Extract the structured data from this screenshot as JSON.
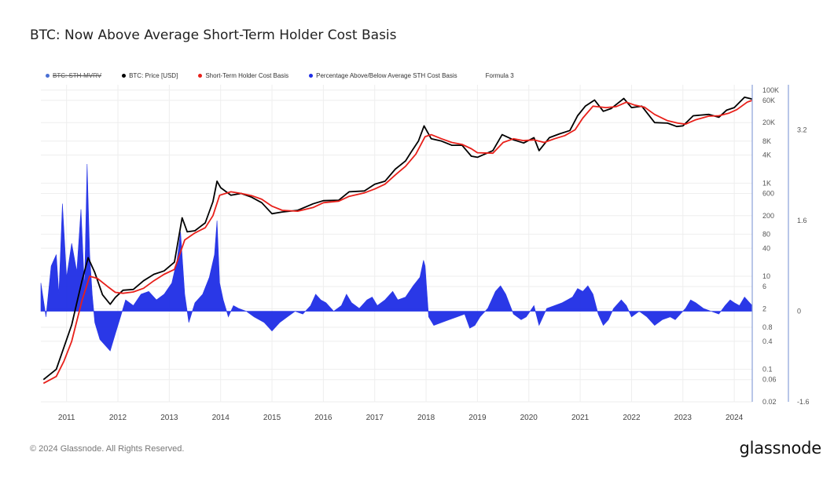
{
  "title": "BTC: Now Above Average Short-Term Holder Cost Basis",
  "footer": "© 2024 Glassnode. All Rights Reserved.",
  "brand": "glassnode",
  "colors": {
    "price": "#000000",
    "cost_basis": "#e8201a",
    "percentage": "#1f2ee6",
    "mvrv": "#4a6fd4",
    "grid": "#eeeeee",
    "axis": "#8aa0d8"
  },
  "legend": [
    {
      "label": "BTC: STH-MVRV",
      "color": "#4a6fd4",
      "struck": true
    },
    {
      "label": "BTC: Price [USD]",
      "color": "#000000",
      "struck": false
    },
    {
      "label": "Short-Term Holder Cost Basis",
      "color": "#e8201a",
      "struck": false
    },
    {
      "label": "Percentage Above/Below Average STH Cost Basis",
      "color": "#1f2ee6",
      "struck": false
    },
    {
      "label": "Formula 3",
      "color": "",
      "struck": false
    }
  ],
  "chart_data": {
    "type": "line",
    "x_axis": {
      "ticks": [
        "2011",
        "2012",
        "2013",
        "2014",
        "2015",
        "2016",
        "2017",
        "2018",
        "2019",
        "2020",
        "2021",
        "2022",
        "2023",
        "2024"
      ],
      "range": [
        2010.5,
        2024.35
      ]
    },
    "y_left": {
      "scale": "log",
      "ticks": [
        "100K",
        "60K",
        "20K",
        "8K",
        "4K",
        "1K",
        "600",
        "200",
        "80",
        "40",
        "10",
        "6",
        "2",
        "0.8",
        "0.4",
        "0.1",
        "0.06",
        "0.02"
      ],
      "tick_values": [
        100000,
        60000,
        20000,
        8000,
        4000,
        1000,
        600,
        200,
        80,
        40,
        10,
        6,
        2,
        0.8,
        0.4,
        0.1,
        0.06,
        0.02
      ],
      "range": [
        0.02,
        130000
      ]
    },
    "y_right": {
      "scale": "linear",
      "ticks": [
        "3.2",
        "1.6",
        "0",
        "-1.6"
      ],
      "tick_values": [
        3.2,
        1.6,
        0,
        -1.6
      ],
      "range": [
        -1.6,
        4.0
      ]
    },
    "series": [
      {
        "name": "BTC: Price [USD]",
        "axis": "left",
        "points": [
          [
            2010.55,
            0.06
          ],
          [
            2010.8,
            0.1
          ],
          [
            2010.95,
            0.3
          ],
          [
            2011.1,
            0.9
          ],
          [
            2011.3,
            8
          ],
          [
            2011.42,
            25
          ],
          [
            2011.55,
            12
          ],
          [
            2011.7,
            4
          ],
          [
            2011.85,
            2.5
          ],
          [
            2011.95,
            3.5
          ],
          [
            2012.1,
            5
          ],
          [
            2012.3,
            5.2
          ],
          [
            2012.5,
            8
          ],
          [
            2012.7,
            11
          ],
          [
            2012.9,
            13
          ],
          [
            2013.1,
            20
          ],
          [
            2013.25,
            180
          ],
          [
            2013.35,
            90
          ],
          [
            2013.5,
            95
          ],
          [
            2013.7,
            140
          ],
          [
            2013.85,
            400
          ],
          [
            2013.93,
            1100
          ],
          [
            2014.0,
            800
          ],
          [
            2014.2,
            550
          ],
          [
            2014.4,
            600
          ],
          [
            2014.6,
            500
          ],
          [
            2014.8,
            380
          ],
          [
            2015.0,
            220
          ],
          [
            2015.2,
            240
          ],
          [
            2015.5,
            260
          ],
          [
            2015.8,
            360
          ],
          [
            2016.0,
            420
          ],
          [
            2016.3,
            430
          ],
          [
            2016.5,
            650
          ],
          [
            2016.8,
            680
          ],
          [
            2017.0,
            950
          ],
          [
            2017.2,
            1100
          ],
          [
            2017.4,
            2000
          ],
          [
            2017.6,
            3000
          ],
          [
            2017.7,
            4500
          ],
          [
            2017.85,
            8000
          ],
          [
            2017.96,
            17000
          ],
          [
            2018.1,
            9000
          ],
          [
            2018.3,
            8000
          ],
          [
            2018.5,
            6500
          ],
          [
            2018.7,
            6500
          ],
          [
            2018.88,
            3800
          ],
          [
            2019.0,
            3600
          ],
          [
            2019.3,
            5000
          ],
          [
            2019.48,
            11000
          ],
          [
            2019.7,
            8500
          ],
          [
            2019.9,
            7300
          ],
          [
            2020.1,
            9500
          ],
          [
            2020.2,
            5000
          ],
          [
            2020.4,
            9500
          ],
          [
            2020.6,
            11500
          ],
          [
            2020.8,
            13500
          ],
          [
            2020.95,
            28000
          ],
          [
            2021.1,
            45000
          ],
          [
            2021.28,
            61000
          ],
          [
            2021.45,
            35000
          ],
          [
            2021.6,
            40000
          ],
          [
            2021.85,
            66000
          ],
          [
            2022.0,
            42000
          ],
          [
            2022.2,
            45000
          ],
          [
            2022.45,
            20000
          ],
          [
            2022.7,
            19500
          ],
          [
            2022.88,
            16500
          ],
          [
            2023.0,
            17000
          ],
          [
            2023.2,
            28000
          ],
          [
            2023.5,
            30000
          ],
          [
            2023.7,
            26000
          ],
          [
            2023.85,
            37000
          ],
          [
            2024.0,
            42000
          ],
          [
            2024.2,
            70000
          ],
          [
            2024.35,
            64000
          ]
        ]
      },
      {
        "name": "Short-Term Holder Cost Basis",
        "axis": "left",
        "points": [
          [
            2010.55,
            0.05
          ],
          [
            2010.8,
            0.07
          ],
          [
            2010.95,
            0.15
          ],
          [
            2011.1,
            0.4
          ],
          [
            2011.3,
            3
          ],
          [
            2011.45,
            10
          ],
          [
            2011.6,
            9
          ],
          [
            2011.8,
            6
          ],
          [
            2011.95,
            4.5
          ],
          [
            2012.1,
            4.3
          ],
          [
            2012.3,
            4.6
          ],
          [
            2012.5,
            5.5
          ],
          [
            2012.7,
            8
          ],
          [
            2012.9,
            11
          ],
          [
            2013.1,
            14
          ],
          [
            2013.3,
            60
          ],
          [
            2013.5,
            85
          ],
          [
            2013.7,
            110
          ],
          [
            2013.85,
            200
          ],
          [
            2013.98,
            550
          ],
          [
            2014.2,
            650
          ],
          [
            2014.4,
            600
          ],
          [
            2014.6,
            540
          ],
          [
            2014.8,
            450
          ],
          [
            2015.0,
            320
          ],
          [
            2015.2,
            260
          ],
          [
            2015.5,
            250
          ],
          [
            2015.8,
            300
          ],
          [
            2016.0,
            380
          ],
          [
            2016.3,
            410
          ],
          [
            2016.5,
            520
          ],
          [
            2016.8,
            620
          ],
          [
            2017.0,
            750
          ],
          [
            2017.2,
            950
          ],
          [
            2017.4,
            1500
          ],
          [
            2017.6,
            2300
          ],
          [
            2017.8,
            4200
          ],
          [
            2017.98,
            10000
          ],
          [
            2018.1,
            11000
          ],
          [
            2018.3,
            9000
          ],
          [
            2018.5,
            7500
          ],
          [
            2018.7,
            6800
          ],
          [
            2018.88,
            5500
          ],
          [
            2019.0,
            4500
          ],
          [
            2019.3,
            4400
          ],
          [
            2019.5,
            7500
          ],
          [
            2019.7,
            9000
          ],
          [
            2019.9,
            8200
          ],
          [
            2020.1,
            8500
          ],
          [
            2020.3,
            7500
          ],
          [
            2020.5,
            9000
          ],
          [
            2020.7,
            10500
          ],
          [
            2020.9,
            14000
          ],
          [
            2021.05,
            25000
          ],
          [
            2021.25,
            45000
          ],
          [
            2021.5,
            42000
          ],
          [
            2021.7,
            44000
          ],
          [
            2021.9,
            55000
          ],
          [
            2022.05,
            48000
          ],
          [
            2022.25,
            43000
          ],
          [
            2022.45,
            30000
          ],
          [
            2022.7,
            22000
          ],
          [
            2022.9,
            19500
          ],
          [
            2023.05,
            18500
          ],
          [
            2023.25,
            23000
          ],
          [
            2023.5,
            27500
          ],
          [
            2023.7,
            28000
          ],
          [
            2023.9,
            32000
          ],
          [
            2024.05,
            38000
          ],
          [
            2024.25,
            55000
          ],
          [
            2024.35,
            60000
          ]
        ]
      },
      {
        "name": "Percentage Above/Below Average STH Cost Basis",
        "axis": "right",
        "type": "area",
        "points": [
          [
            2010.5,
            0.5
          ],
          [
            2010.6,
            -0.1
          ],
          [
            2010.7,
            0.8
          ],
          [
            2010.8,
            1.0
          ],
          [
            2010.85,
            0.3
          ],
          [
            2010.92,
            1.9
          ],
          [
            2011.0,
            0.6
          ],
          [
            2011.1,
            1.2
          ],
          [
            2011.2,
            0.7
          ],
          [
            2011.28,
            1.8
          ],
          [
            2011.35,
            0.4
          ],
          [
            2011.4,
            2.6
          ],
          [
            2011.45,
            1.0
          ],
          [
            2011.5,
            0.3
          ],
          [
            2011.55,
            -0.2
          ],
          [
            2011.65,
            -0.5
          ],
          [
            2011.75,
            -0.6
          ],
          [
            2011.85,
            -0.7
          ],
          [
            2011.95,
            -0.4
          ],
          [
            2012.05,
            -0.1
          ],
          [
            2012.15,
            0.2
          ],
          [
            2012.3,
            0.1
          ],
          [
            2012.45,
            0.3
          ],
          [
            2012.6,
            0.35
          ],
          [
            2012.75,
            0.2
          ],
          [
            2012.9,
            0.3
          ],
          [
            2013.05,
            0.5
          ],
          [
            2013.15,
            0.9
          ],
          [
            2013.22,
            1.4
          ],
          [
            2013.3,
            0.3
          ],
          [
            2013.38,
            -0.2
          ],
          [
            2013.5,
            0.15
          ],
          [
            2013.65,
            0.3
          ],
          [
            2013.78,
            0.6
          ],
          [
            2013.88,
            1.0
          ],
          [
            2013.93,
            1.6
          ],
          [
            2013.98,
            0.5
          ],
          [
            2014.05,
            0.2
          ],
          [
            2014.15,
            -0.1
          ],
          [
            2014.25,
            0.1
          ],
          [
            2014.35,
            0.05
          ],
          [
            2014.5,
            0.0
          ],
          [
            2014.65,
            -0.1
          ],
          [
            2014.85,
            -0.2
          ],
          [
            2015.0,
            -0.35
          ],
          [
            2015.15,
            -0.2
          ],
          [
            2015.3,
            -0.1
          ],
          [
            2015.45,
            0.0
          ],
          [
            2015.6,
            -0.05
          ],
          [
            2015.75,
            0.1
          ],
          [
            2015.85,
            0.3
          ],
          [
            2015.95,
            0.2
          ],
          [
            2016.05,
            0.15
          ],
          [
            2016.2,
            0.0
          ],
          [
            2016.35,
            0.1
          ],
          [
            2016.45,
            0.3
          ],
          [
            2016.55,
            0.15
          ],
          [
            2016.7,
            0.05
          ],
          [
            2016.85,
            0.2
          ],
          [
            2016.95,
            0.25
          ],
          [
            2017.05,
            0.1
          ],
          [
            2017.2,
            0.2
          ],
          [
            2017.35,
            0.35
          ],
          [
            2017.45,
            0.2
          ],
          [
            2017.6,
            0.25
          ],
          [
            2017.75,
            0.45
          ],
          [
            2017.88,
            0.6
          ],
          [
            2017.95,
            0.9
          ],
          [
            2017.98,
            0.8
          ],
          [
            2018.05,
            -0.1
          ],
          [
            2018.15,
            -0.25
          ],
          [
            2018.3,
            -0.2
          ],
          [
            2018.45,
            -0.15
          ],
          [
            2018.6,
            -0.1
          ],
          [
            2018.75,
            -0.05
          ],
          [
            2018.85,
            -0.3
          ],
          [
            2018.95,
            -0.25
          ],
          [
            2019.05,
            -0.1
          ],
          [
            2019.2,
            0.05
          ],
          [
            2019.35,
            0.35
          ],
          [
            2019.45,
            0.45
          ],
          [
            2019.55,
            0.3
          ],
          [
            2019.7,
            -0.05
          ],
          [
            2019.85,
            -0.15
          ],
          [
            2019.95,
            -0.1
          ],
          [
            2020.1,
            0.1
          ],
          [
            2020.2,
            -0.25
          ],
          [
            2020.35,
            0.05
          ],
          [
            2020.5,
            0.1
          ],
          [
            2020.65,
            0.15
          ],
          [
            2020.75,
            0.2
          ],
          [
            2020.85,
            0.25
          ],
          [
            2020.95,
            0.4
          ],
          [
            2021.05,
            0.35
          ],
          [
            2021.15,
            0.45
          ],
          [
            2021.25,
            0.3
          ],
          [
            2021.35,
            -0.05
          ],
          [
            2021.45,
            -0.25
          ],
          [
            2021.55,
            -0.15
          ],
          [
            2021.65,
            0.05
          ],
          [
            2021.8,
            0.2
          ],
          [
            2021.9,
            0.1
          ],
          [
            2022.0,
            -0.1
          ],
          [
            2022.15,
            0.0
          ],
          [
            2022.3,
            -0.1
          ],
          [
            2022.45,
            -0.25
          ],
          [
            2022.6,
            -0.15
          ],
          [
            2022.75,
            -0.1
          ],
          [
            2022.85,
            -0.15
          ],
          [
            2022.95,
            -0.05
          ],
          [
            2023.05,
            0.05
          ],
          [
            2023.15,
            0.2
          ],
          [
            2023.25,
            0.15
          ],
          [
            2023.4,
            0.05
          ],
          [
            2023.55,
            0.0
          ],
          [
            2023.7,
            -0.05
          ],
          [
            2023.82,
            0.1
          ],
          [
            2023.92,
            0.2
          ],
          [
            2024.0,
            0.15
          ],
          [
            2024.1,
            0.1
          ],
          [
            2024.2,
            0.25
          ],
          [
            2024.3,
            0.15
          ],
          [
            2024.35,
            0.1
          ]
        ]
      }
    ]
  }
}
